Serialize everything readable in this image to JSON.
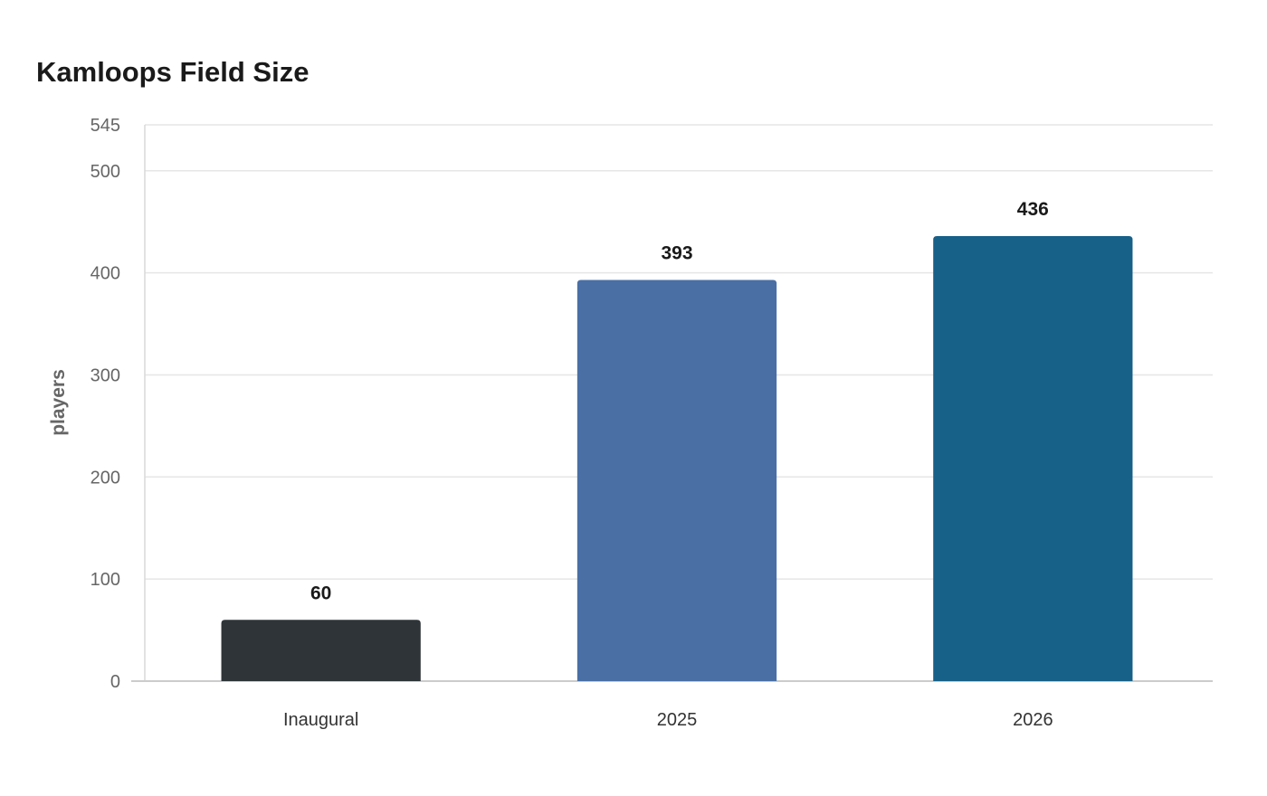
{
  "chart_data": {
    "type": "bar",
    "title": "Kamloops Field Size",
    "xlabel": "",
    "ylabel": "players",
    "categories": [
      "Inaugural",
      "2025",
      "2026"
    ],
    "values": [
      60,
      393,
      436
    ],
    "bar_colors": [
      "#2e3438",
      "#4a6fa5",
      "#176088"
    ],
    "ylim": [
      0,
      545
    ],
    "yticks": [
      0,
      100,
      200,
      300,
      400,
      500,
      545
    ],
    "grid": true,
    "legend": "none",
    "data_labels": true
  }
}
